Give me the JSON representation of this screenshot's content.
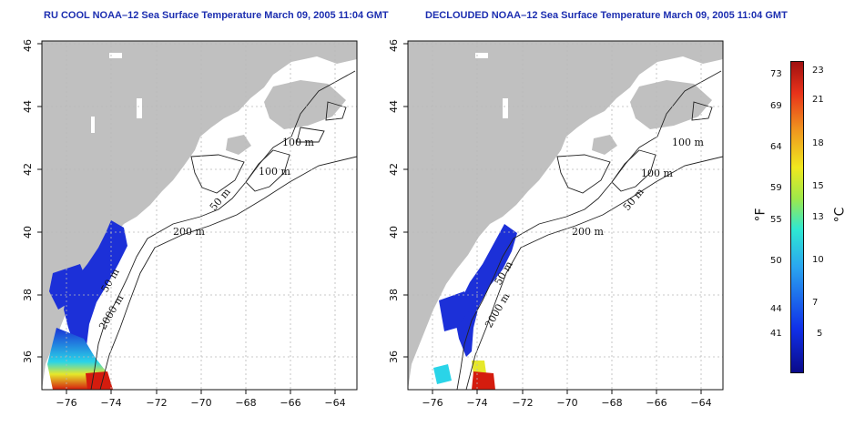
{
  "panels": [
    {
      "title": "RU COOL NOAA–12 Sea Surface Temperature March 09, 2005 11:04 GMT",
      "contour_labels": [
        "100 m",
        "100 m",
        "50 m",
        "200 m",
        "50 m",
        "2000 m"
      ]
    },
    {
      "title": "DECLOUDED NOAA–12 Sea Surface Temperature March 09, 2005 11:04 GMT",
      "contour_labels": [
        "100 m",
        "100 m",
        "50 m",
        "200 m",
        "50 m",
        "2000 m"
      ]
    }
  ],
  "axes": {
    "x_ticks": [
      "−76",
      "−74",
      "−72",
      "−70",
      "−68",
      "−66",
      "−64"
    ],
    "y_ticks": [
      "36",
      "38",
      "40",
      "42",
      "44",
      "46"
    ]
  },
  "colorbar": {
    "fahrenheit_ticks": [
      "73",
      "69",
      "64",
      "59",
      "55",
      "50",
      "44",
      "41"
    ],
    "celsius_ticks": [
      "23",
      "21",
      "18",
      "15",
      "13",
      "10",
      "7",
      "5"
    ],
    "fahrenheit_unit": "°F",
    "celsius_unit": "°C"
  },
  "colors": {
    "title": "#1c2eb0",
    "land": "#c0c0c0",
    "grid": "#b8b8b8"
  }
}
